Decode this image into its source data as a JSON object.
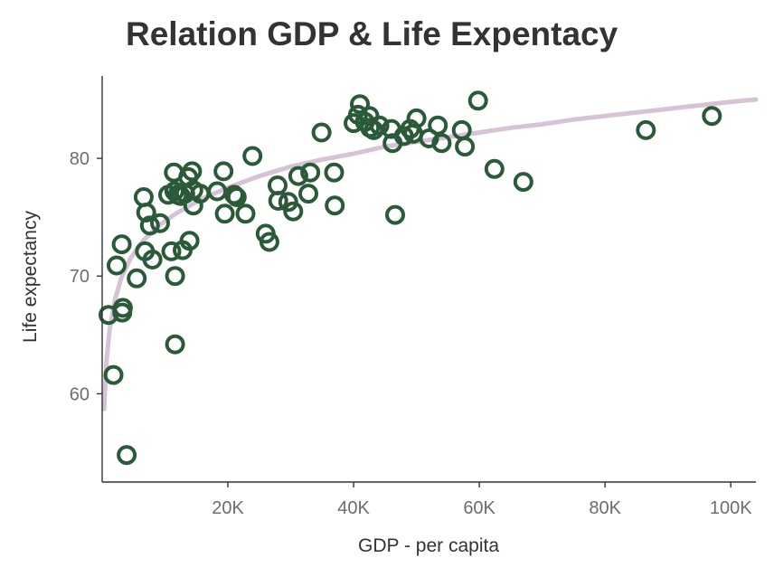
{
  "chart_data": {
    "type": "scatter",
    "title": "Relation GDP & Life Expentacy",
    "xlabel": "GDP - per capita",
    "ylabel": "Life expectancy",
    "xlim": [
      0,
      104000
    ],
    "ylim": [
      52.5,
      87
    ],
    "x_ticks": [
      {
        "value": 20000,
        "label": "20K"
      },
      {
        "value": 40000,
        "label": "40K"
      },
      {
        "value": 60000,
        "label": "60K"
      },
      {
        "value": 80000,
        "label": "80K"
      },
      {
        "value": 100000,
        "label": "100K"
      }
    ],
    "y_ticks": [
      {
        "value": 60,
        "label": "60"
      },
      {
        "value": 70,
        "label": "70"
      },
      {
        "value": 80,
        "label": "80"
      }
    ],
    "grid": false,
    "legend": "none",
    "colors": {
      "points": "#2a5a38",
      "trend": "#d8c2d6",
      "axis": "#333333",
      "tick_label": "#6d6d6d"
    },
    "trend_line": {
      "type": "logarithmic",
      "points": [
        [
          300,
          58.7
        ],
        [
          700,
          62.9
        ],
        [
          1200,
          65.5
        ],
        [
          2000,
          67.9
        ],
        [
          3000,
          69.8
        ],
        [
          4500,
          71.5
        ],
        [
          6500,
          73.0
        ],
        [
          9000,
          74.3
        ],
        [
          12000,
          75.4
        ],
        [
          16000,
          76.6
        ],
        [
          20000,
          77.5
        ],
        [
          25000,
          78.5
        ],
        [
          30000,
          79.3
        ],
        [
          35000,
          79.9
        ],
        [
          40000,
          80.4
        ],
        [
          45000,
          81.0
        ],
        [
          50000,
          81.4
        ],
        [
          55000,
          81.8
        ],
        [
          60000,
          82.2
        ],
        [
          65000,
          82.6
        ],
        [
          70000,
          82.9
        ],
        [
          75000,
          83.3
        ],
        [
          80000,
          83.6
        ],
        [
          85000,
          83.9
        ],
        [
          90000,
          84.2
        ],
        [
          95000,
          84.5
        ],
        [
          100000,
          84.8
        ],
        [
          104000,
          85.0
        ]
      ]
    },
    "series": [
      {
        "points": [
          [
            1000,
            66.7
          ],
          [
            1800,
            61.6
          ],
          [
            2300,
            70.9
          ],
          [
            3100,
            72.7
          ],
          [
            3300,
            67.3
          ],
          [
            3200,
            66.9
          ],
          [
            3900,
            54.8
          ],
          [
            5500,
            69.8
          ],
          [
            6600,
            76.7
          ],
          [
            7000,
            75.4
          ],
          [
            6800,
            72.1
          ],
          [
            7600,
            74.3
          ],
          [
            8000,
            71.4
          ],
          [
            9200,
            74.5
          ],
          [
            10500,
            76.9
          ],
          [
            11000,
            72.1
          ],
          [
            11400,
            78.8
          ],
          [
            11500,
            77.2
          ],
          [
            12000,
            76.9
          ],
          [
            12500,
            76.8
          ],
          [
            11600,
            70.0
          ],
          [
            11600,
            64.2
          ],
          [
            12800,
            72.2
          ],
          [
            13200,
            77.0
          ],
          [
            13700,
            78.4
          ],
          [
            13900,
            73.0
          ],
          [
            14300,
            78.9
          ],
          [
            14500,
            77.3
          ],
          [
            14500,
            76.0
          ],
          [
            15600,
            77.0
          ],
          [
            18300,
            77.2
          ],
          [
            19300,
            78.9
          ],
          [
            19500,
            75.3
          ],
          [
            21000,
            76.9
          ],
          [
            21400,
            76.7
          ],
          [
            22800,
            75.3
          ],
          [
            23900,
            80.2
          ],
          [
            26000,
            73.6
          ],
          [
            26600,
            72.9
          ],
          [
            27900,
            77.7
          ],
          [
            28000,
            76.4
          ],
          [
            29600,
            76.3
          ],
          [
            30400,
            75.5
          ],
          [
            31200,
            78.5
          ],
          [
            32800,
            77.0
          ],
          [
            33100,
            78.8
          ],
          [
            34900,
            82.2
          ],
          [
            36900,
            78.8
          ],
          [
            37000,
            76.0
          ],
          [
            40000,
            83.0
          ],
          [
            40700,
            83.7
          ],
          [
            41000,
            84.6
          ],
          [
            41800,
            83.1
          ],
          [
            42500,
            83.6
          ],
          [
            42600,
            82.6
          ],
          [
            43200,
            82.4
          ],
          [
            44100,
            82.8
          ],
          [
            46000,
            82.5
          ],
          [
            46200,
            81.3
          ],
          [
            46600,
            75.2
          ],
          [
            48000,
            81.9
          ],
          [
            49000,
            82.5
          ],
          [
            49500,
            82.1
          ],
          [
            50000,
            83.4
          ],
          [
            52000,
            81.7
          ],
          [
            53400,
            82.8
          ],
          [
            54000,
            81.3
          ],
          [
            57200,
            82.4
          ],
          [
            57700,
            81.0
          ],
          [
            59800,
            84.9
          ],
          [
            62400,
            79.1
          ],
          [
            67000,
            78.0
          ],
          [
            86500,
            82.4
          ],
          [
            97000,
            83.6
          ]
        ]
      }
    ]
  }
}
